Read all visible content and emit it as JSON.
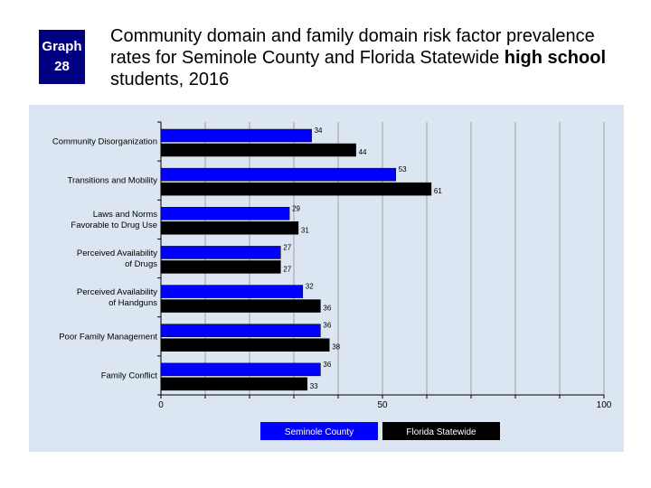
{
  "badge": {
    "line1": "Graph",
    "line2": "28"
  },
  "title": {
    "text_before": "Community domain and family domain risk factor prevalence rates for Seminole County and Florida Statewide ",
    "text_bold": "high school",
    "text_after": " students, 2016"
  },
  "colors": {
    "seminole": "#0000ff",
    "florida": "#000000",
    "panel": "#dce6f2"
  },
  "chart_data": {
    "type": "bar",
    "orientation": "horizontal",
    "categories": [
      [
        "Community Disorganization"
      ],
      [
        "Transitions and Mobility"
      ],
      [
        "Laws and Norms",
        "Favorable to Drug Use"
      ],
      [
        "Perceived Availability",
        "of Drugs"
      ],
      [
        "Perceived Availability",
        "of Handguns"
      ],
      [
        "Poor Family Management"
      ],
      [
        "Family Conflict"
      ]
    ],
    "series": [
      {
        "name": "Seminole County",
        "values": [
          34,
          53,
          29,
          27,
          32,
          36,
          36
        ]
      },
      {
        "name": "Florida Statewide",
        "values": [
          44,
          61,
          31,
          27,
          36,
          38,
          33
        ]
      }
    ],
    "xlim": [
      0,
      100
    ],
    "xticks": [
      0,
      50,
      100
    ],
    "legend_position": "bottom"
  }
}
